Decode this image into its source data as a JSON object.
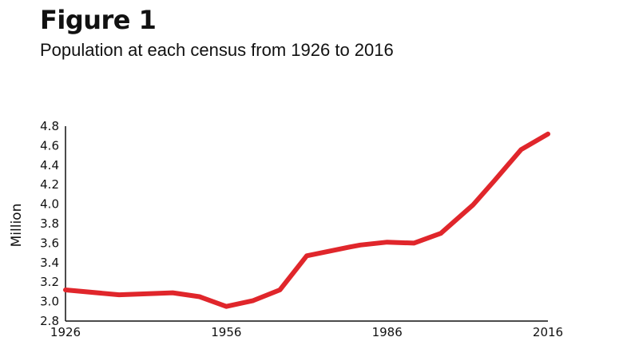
{
  "title": "Figure 1",
  "subtitle": "Population at each census from 1926 to 2016",
  "chart_data": {
    "type": "line",
    "ylabel": "Million",
    "xlabel": "",
    "ylim": [
      2.8,
      4.8
    ],
    "xlim": [
      1926,
      2016
    ],
    "y_ticks": [
      "4.8",
      "4.6",
      "4.4",
      "4.2",
      "4.0",
      "3.8",
      "3.6",
      "3.4",
      "3.2",
      "3.0",
      "2.8"
    ],
    "x_ticks": [
      "1926",
      "1956",
      "1986",
      "2016"
    ],
    "grid": false,
    "line_color": "#e0262b",
    "series": [
      {
        "x": [
          1926,
          1936,
          1946,
          1951,
          1956,
          1961,
          1966,
          1971,
          1979,
          1981,
          1986,
          1991,
          1996,
          2002,
          2006,
          2011,
          2016
        ],
        "y": [
          3.12,
          3.07,
          3.09,
          3.05,
          2.95,
          3.01,
          3.12,
          3.47,
          3.56,
          3.58,
          3.61,
          3.6,
          3.7,
          3.99,
          4.24,
          4.56,
          4.72
        ]
      }
    ]
  }
}
